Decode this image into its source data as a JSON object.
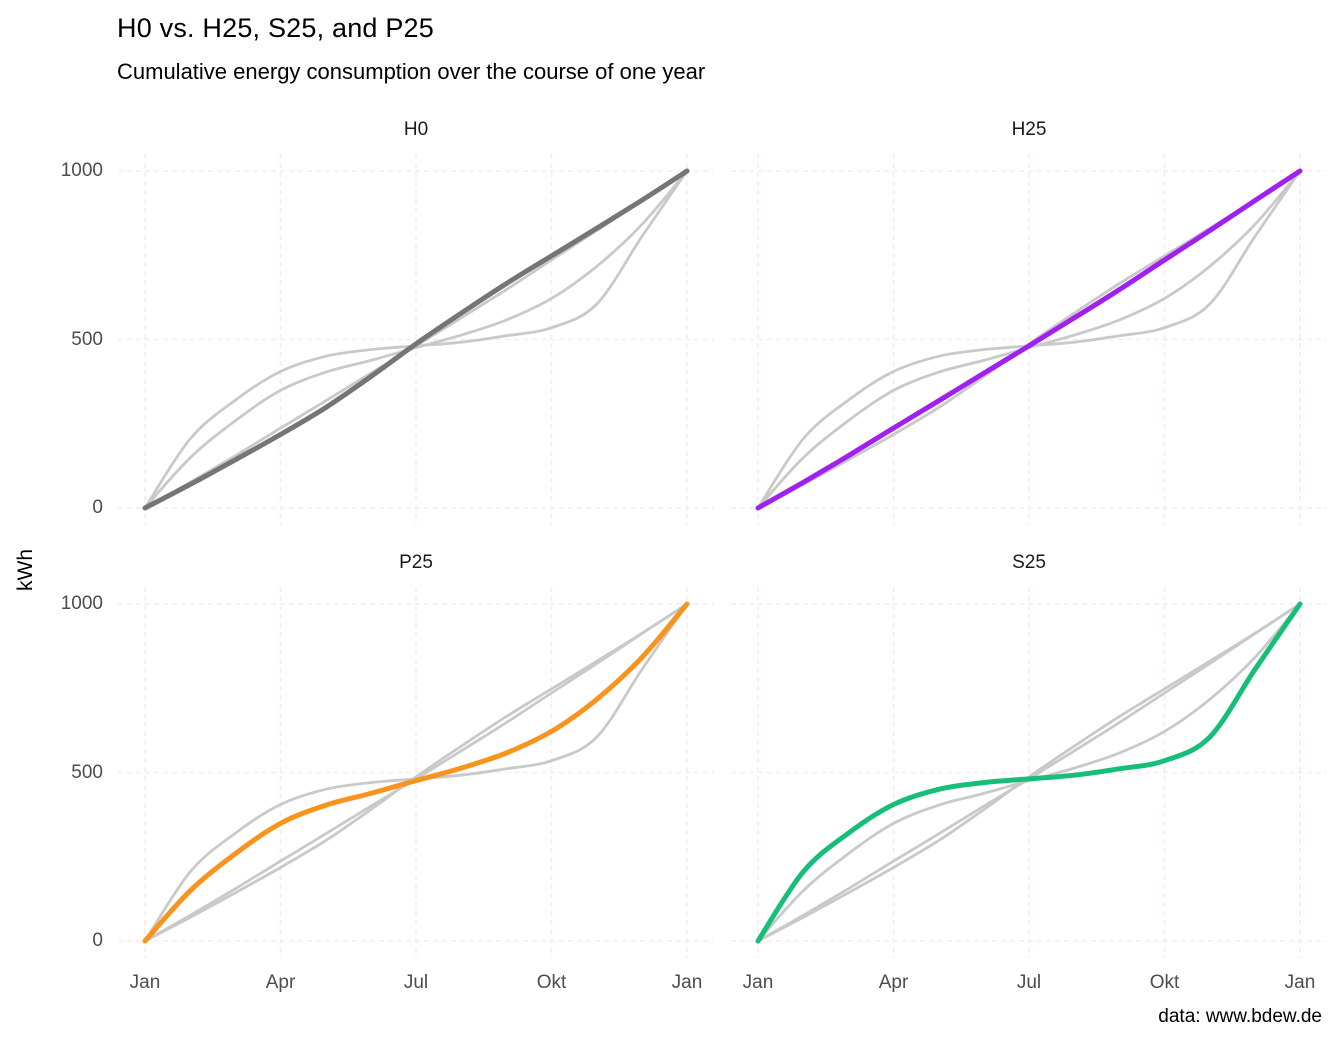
{
  "title": "H0 vs. H25, S25, and P25",
  "subtitle": "Cumulative energy consumption over the course of one year",
  "caption": "data: www.bdew.de",
  "ylabel": "kWh",
  "chart_data": {
    "type": "line",
    "layout": "2x2 facets, shared axes, minimal theme, dashed major grid, no legend",
    "facets": [
      "H0",
      "H25",
      "P25",
      "S25"
    ],
    "x_months_index": [
      0,
      1,
      2,
      3,
      4,
      5,
      6,
      7,
      8,
      9,
      10,
      11,
      12
    ],
    "x_tick_positions": [
      0,
      3,
      6,
      9,
      12
    ],
    "x_tick_labels": [
      "Jan",
      "Apr",
      "Jul",
      "Okt",
      "Jan"
    ],
    "y_tick_values": [
      0,
      500,
      1000
    ],
    "y_tick_labels": [
      "0",
      "500",
      "1000"
    ],
    "ylim": [
      0,
      1000
    ],
    "ylim_expanded": [
      -50,
      1050
    ],
    "series": {
      "H0": [
        0,
        70,
        143,
        218,
        298,
        390,
        487,
        578,
        666,
        748,
        830,
        913,
        1000
      ],
      "H25": [
        0,
        76,
        155,
        237,
        318,
        400,
        481,
        564,
        648,
        736,
        823,
        912,
        1000
      ],
      "P25": [
        0,
        149,
        259,
        349,
        403,
        438,
        476,
        513,
        558,
        622,
        717,
        841,
        1000
      ],
      "S25": [
        0,
        205,
        320,
        405,
        450,
        470,
        481,
        492,
        511,
        535,
        605,
        805,
        1000
      ]
    },
    "highlight_colors": {
      "H0": "#757575",
      "H25": "#A020F0",
      "P25": "#F8941E",
      "S25": "#17BE78"
    },
    "background_series_color": "#C9C9C9",
    "grid_color": "#F7EDE6",
    "axis_text_color": "#4D4D4D",
    "strip_text_color": "#1A1A1A"
  }
}
